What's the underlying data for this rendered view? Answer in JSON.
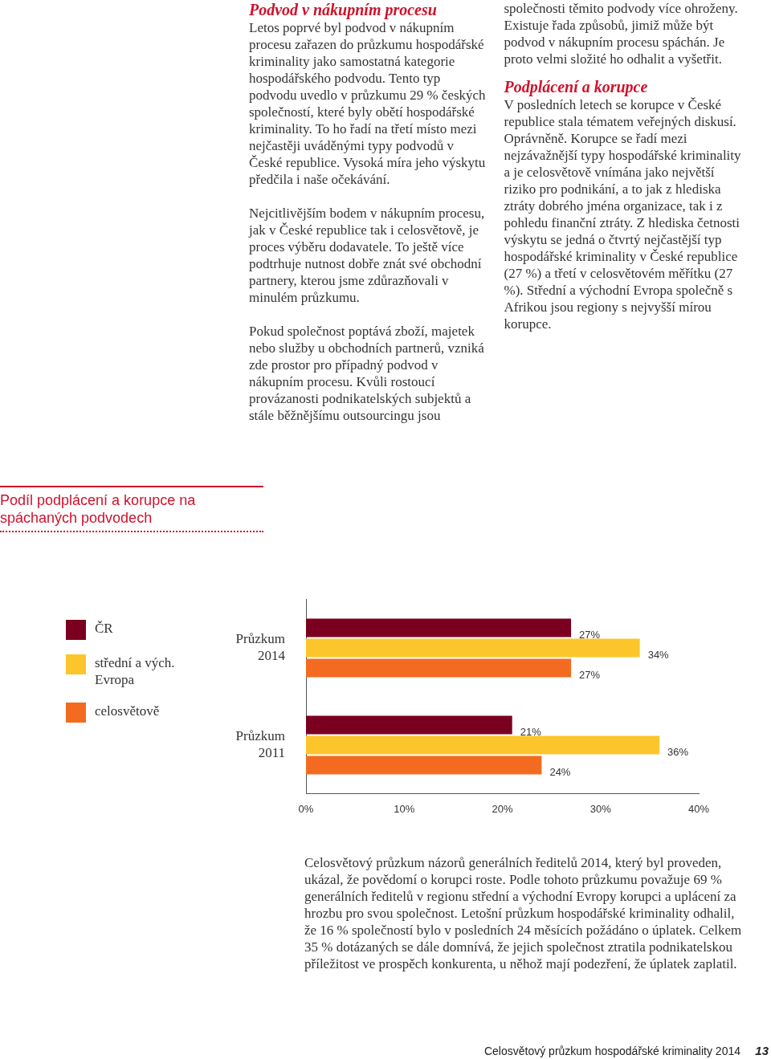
{
  "chart_data": {
    "type": "bar",
    "orientation": "horizontal",
    "title": "Podíl podplácení a korupce na spáchaných podvodech",
    "categories": [
      "Průzkum 2014",
      "Průzkum 2011"
    ],
    "series": [
      {
        "name": "ČR",
        "color": "#7b0020",
        "values": [
          27,
          21
        ],
        "value_labels": [
          "27%",
          "21%"
        ]
      },
      {
        "name": "střední a vých. Evropa",
        "color": "#fdc52c",
        "values": [
          34,
          36
        ],
        "value_labels": [
          "34%",
          "36%"
        ]
      },
      {
        "name": "celosvětově",
        "color": "#f26b21",
        "values": [
          27,
          24
        ],
        "value_labels": [
          "27%",
          "24%"
        ]
      }
    ],
    "xlim": [
      0,
      40
    ],
    "xticks": [
      {
        "value": 0,
        "label": "0%"
      },
      {
        "value": 10,
        "label": "10%"
      },
      {
        "value": 20,
        "label": "20%"
      },
      {
        "value": 30,
        "label": "30%"
      },
      {
        "value": 40,
        "label": "40%"
      }
    ],
    "grid": false,
    "legend": "left",
    "annotations": [
      "Podvod v nákupním procesu",
      "Letos poprvé byl podvod v nákupním procesu zařazen do průzkumu hospodářské kriminality jako samostatná kategorie hospodářského podvodu. Tento typ podvodu uvedlo v průzkumu 29 % českých společností, které byly obětí hospodářské kriminality. To ho řadí na třetí místo mezi nejčastěji uváděnými typy podvodů v České republice. Vysoká míra jeho výskytu předčila i naše očekávání.",
      "Nejcitlivějším bodem v nákupním procesu, jak v České republice tak i celosvětově, je proces výběru dodavatele. To ještě více podtrhuje nutnost dobře znát své obchodní partnery, kterou jsme zdůrazňovali v minulém průzkumu.",
      "Pokud společnost poptává zboží, majetek nebo služby u obchodních partnerů, vzniká zde prostor pro případný podvod v nákupním procesu. Kvůli rostoucí provázanosti podnikatelských subjektů a stále běžnějšímu outsourcingu jsou společnosti těmito podvody více ohroženy. Existuje řada způsobů, jimiž může být podvod v nákupním procesu spáchán. Je proto velmi složité ho odhalit a vyšetřit.",
      "Podplácení a korupce",
      "V posledních letech se korupce v České republice stala tématem veřejných diskusí. Oprávněně. Korupce se řadí mezi nejzávažnější typy hospodářské kriminality a je celosvětově vnímána jako největší riziko pro podnikání, a to jak z hlediska ztráty dobrého jména organizace, tak i z pohledu finanční ztráty. Z hlediska četnosti výskytu se jedná o čtvrtý nejčastější typ hospodářské kriminality v České republice (27 %) a třetí v celosvětovém měřítku (27 %). Střední a východní Evropa společně s Afrikou jsou regiony s nejvyšší mírou korupce.",
      "Celosvětový průzkum názorů generálních ředitelů 2014, který byl proveden, ukázal, že povědomí o korupci roste. Podle tohoto průzkumu považuje 69 % generálních ředitelů v regionu střední a východní Evropy korupci a uplácení za hrozbu pro svou společnost. Letošní průzkum hospodářské kriminality odhalil, že 16 % společností bylo v posledních 24 měsících požádáno o úplatek. Celkem 35 % dotázaných se dále domnívá, že jejich společnost ztratila podnikatelskou příležitost ve prospěch konkurenta, u něhož mají podezření, že úplatek zaplatil.",
      "Celosvětový průzkum hospodářské kriminality 2014",
      "13"
    ]
  }
}
